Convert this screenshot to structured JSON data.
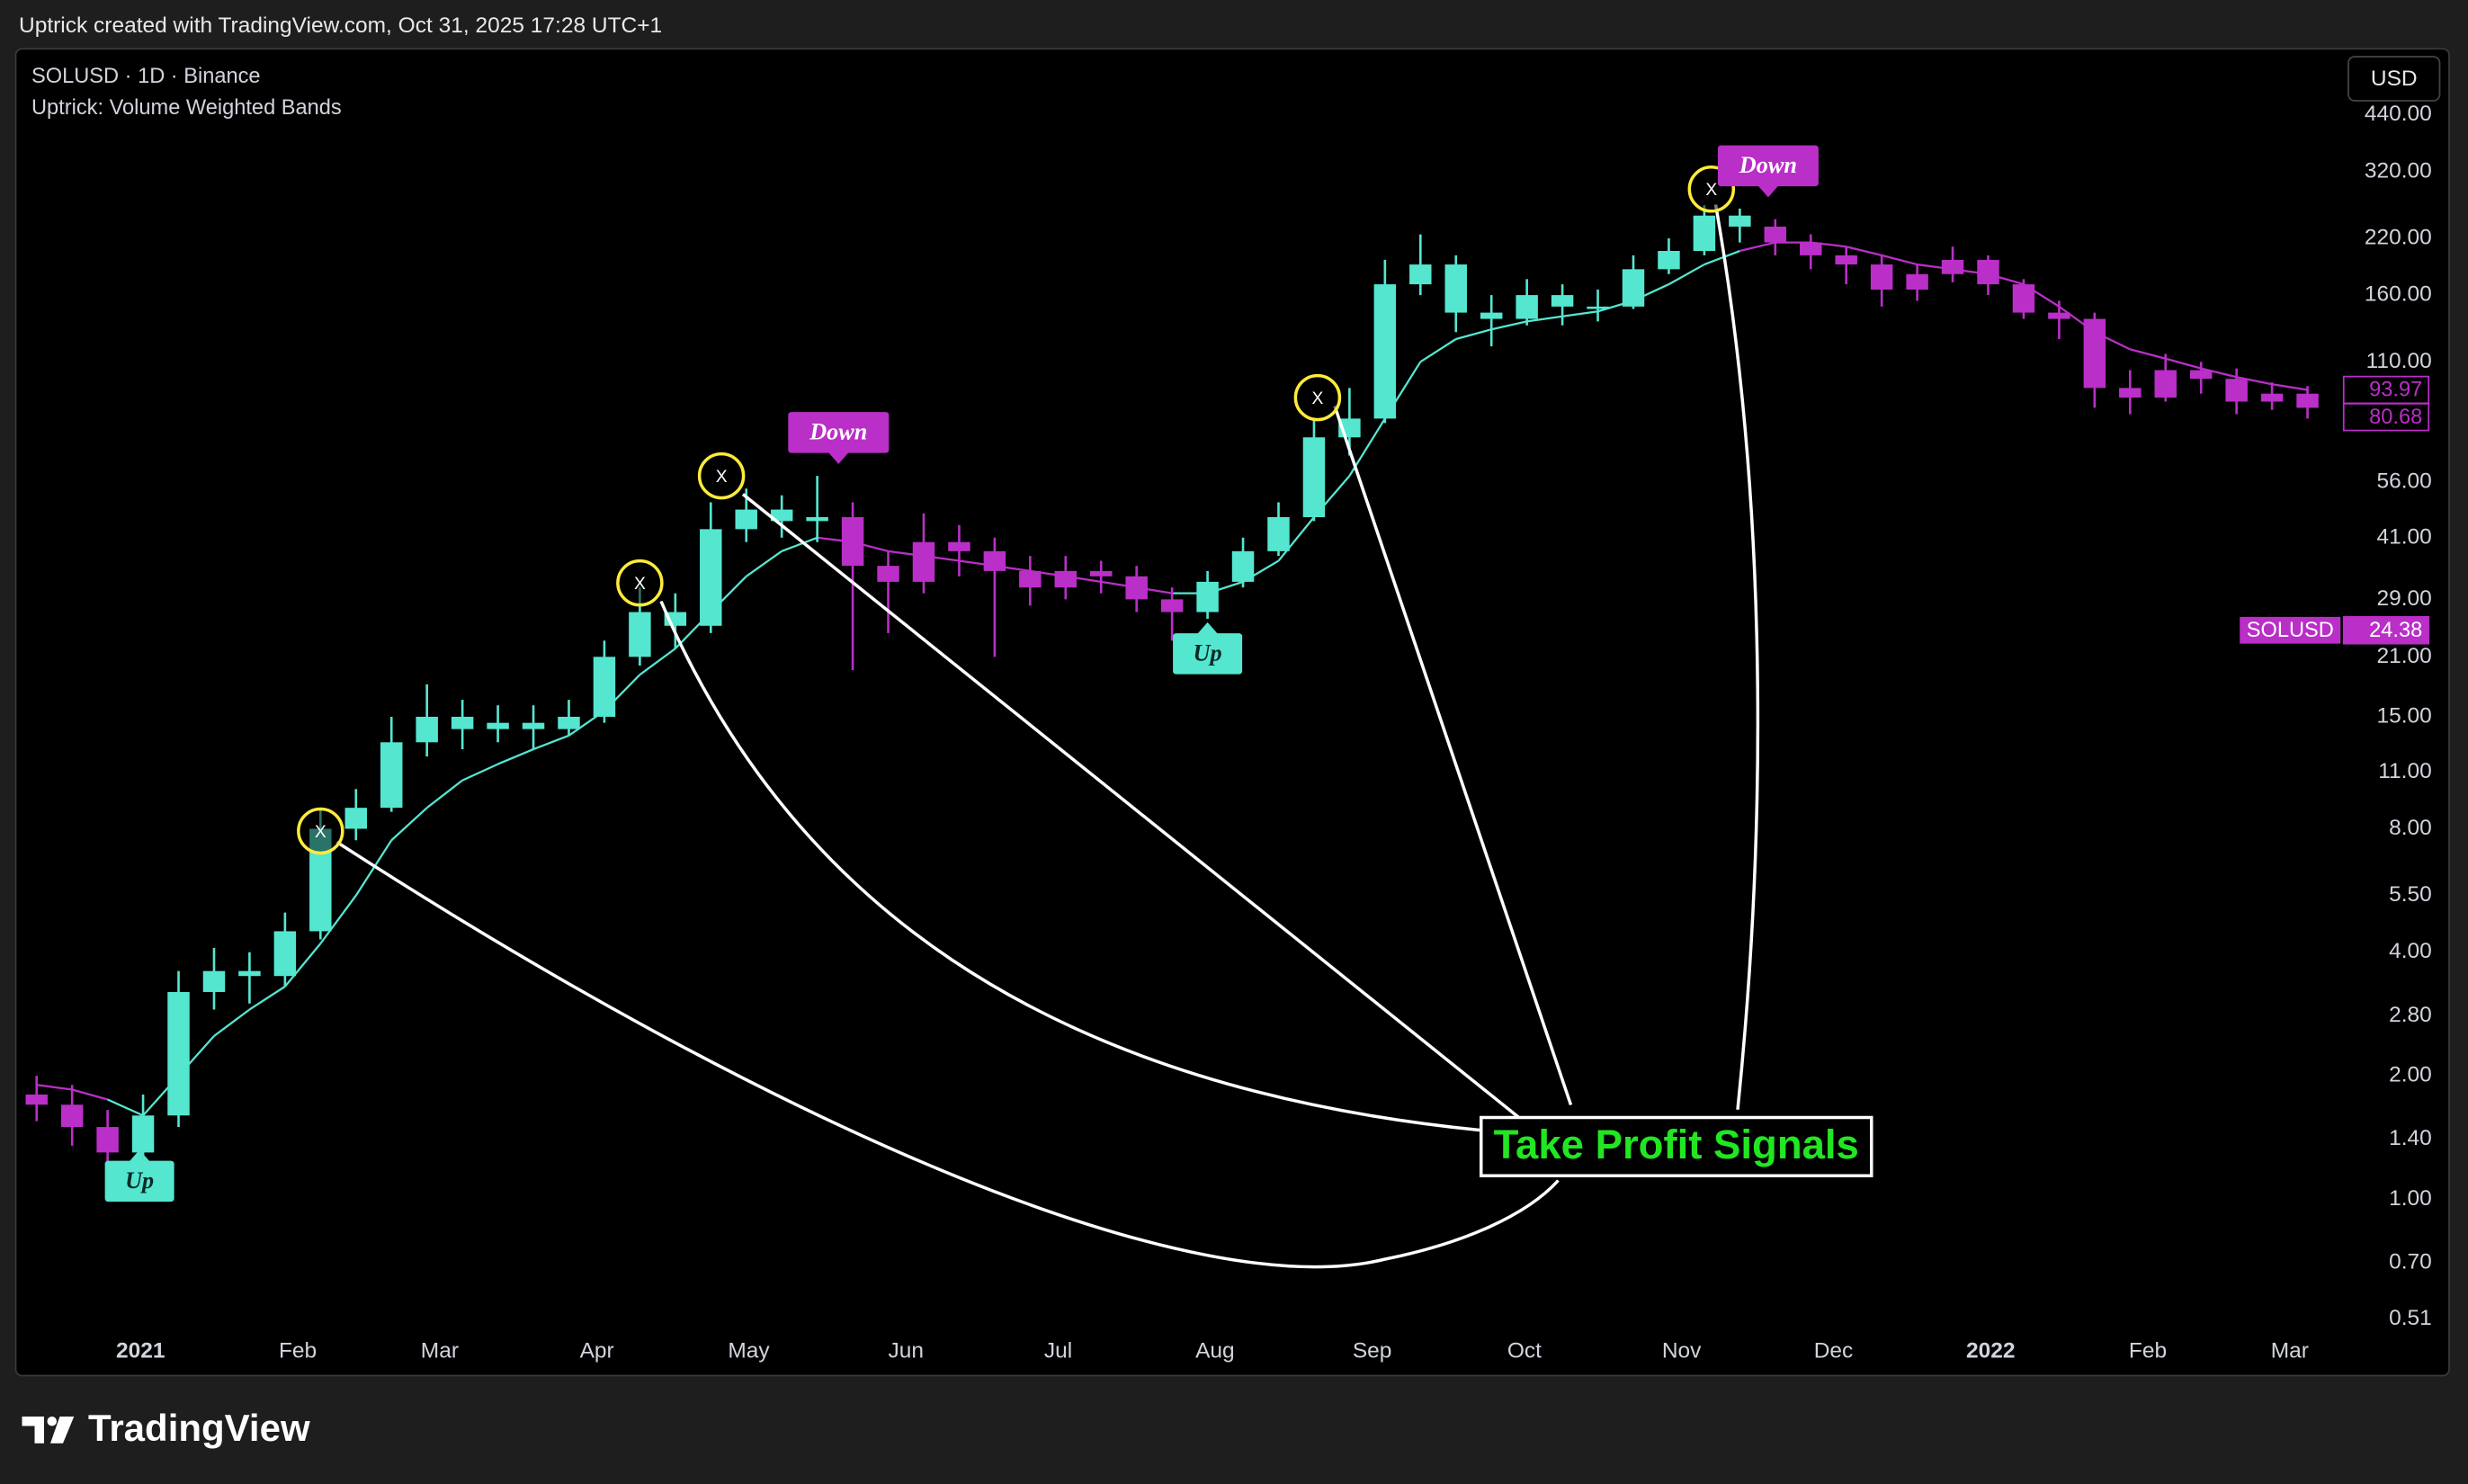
{
  "caption": "Uptrick created with TradingView.com, Oct 31, 2025 17:28 UTC+1",
  "brand": "TradingView",
  "chart_data": {
    "type": "candlestick",
    "title": "SOLUSD · 1D · Binance",
    "subtitle": "Uptrick: Volume Weighted Bands",
    "currency": "USD",
    "log_scale": true,
    "grid": false,
    "xlim": [
      -0.5,
      64.93
    ],
    "xticks": [
      {
        "value": 2.93,
        "label": "2021"
      },
      {
        "value": 7.36,
        "label": "Feb"
      },
      {
        "value": 11.36,
        "label": "Mar"
      },
      {
        "value": 15.79,
        "label": "Apr"
      },
      {
        "value": 20.07,
        "label": "May"
      },
      {
        "value": 24.5,
        "label": "Jun"
      },
      {
        "value": 28.79,
        "label": "Jul"
      },
      {
        "value": 33.21,
        "label": "Aug"
      },
      {
        "value": 37.64,
        "label": "Sep"
      },
      {
        "value": 41.93,
        "label": "Oct"
      },
      {
        "value": 46.36,
        "label": "Nov"
      },
      {
        "value": 50.64,
        "label": "Dec"
      },
      {
        "value": 55.07,
        "label": "2022"
      },
      {
        "value": 59.5,
        "label": "Feb"
      },
      {
        "value": 63.5,
        "label": "Mar"
      }
    ],
    "ylim": [
      0.48,
      632
    ],
    "yticks": [
      {
        "value": 440,
        "label": "440.00"
      },
      {
        "value": 320,
        "label": "320.00"
      },
      {
        "value": 220,
        "label": "220.00"
      },
      {
        "value": 160,
        "label": "160.00"
      },
      {
        "value": 110,
        "label": "110.00"
      },
      {
        "value": 56,
        "label": "56.00"
      },
      {
        "value": 41,
        "label": "41.00"
      },
      {
        "value": 29,
        "label": "29.00"
      },
      {
        "value": 21,
        "label": "21.00"
      },
      {
        "value": 15,
        "label": "15.00"
      },
      {
        "value": 11,
        "label": "11.00"
      },
      {
        "value": 8,
        "label": "8.00"
      },
      {
        "value": 5.5,
        "label": "5.50"
      },
      {
        "value": 4,
        "label": "4.00"
      },
      {
        "value": 2.8,
        "label": "2.80"
      },
      {
        "value": 2,
        "label": "2.00"
      },
      {
        "value": 1.4,
        "label": "1.40"
      },
      {
        "value": 1,
        "label": "1.00"
      },
      {
        "value": 0.7,
        "label": "0.70"
      },
      0.51
    ],
    "open": [
      1.8,
      1.7,
      1.5,
      1.3,
      1.6,
      3.2,
      3.6,
      3.5,
      4.5,
      8,
      9,
      13,
      15,
      14,
      14.5,
      14,
      15,
      21,
      27,
      25,
      43,
      48,
      45,
      46,
      35,
      32,
      40,
      38,
      34,
      31,
      34,
      33,
      29,
      27,
      32,
      38,
      46,
      72,
      80,
      170,
      190,
      145,
      140,
      160,
      150,
      150,
      185,
      205,
      250,
      235,
      215,
      200,
      190,
      165,
      180,
      195,
      170,
      145,
      140,
      95,
      90,
      105,
      100,
      88,
      92
    ],
    "high": [
      2.0,
      1.9,
      1.65,
      1.8,
      3.6,
      4.1,
      4.0,
      5.0,
      9,
      10,
      15,
      18,
      16.5,
      16,
      16,
      16.5,
      23,
      31,
      30,
      50,
      54,
      52,
      58,
      50,
      38,
      47,
      44,
      41,
      37,
      37,
      36,
      35,
      31,
      34,
      41,
      50,
      80,
      95,
      195,
      225,
      200,
      160,
      175,
      170,
      165,
      200,
      220,
      265,
      260,
      245,
      225,
      210,
      200,
      190,
      210,
      200,
      175,
      155,
      145,
      105,
      115,
      110,
      106,
      98,
      96
    ],
    "low": [
      1.55,
      1.35,
      1.05,
      1.2,
      1.5,
      2.9,
      3.0,
      3.3,
      4.3,
      7.5,
      8.8,
      12,
      12.5,
      13,
      12.5,
      13.5,
      14.5,
      20,
      22,
      24,
      40,
      41,
      40,
      19.5,
      24,
      30,
      33,
      21,
      28,
      29,
      30,
      27,
      23,
      26,
      31,
      37,
      45,
      65,
      78,
      160,
      130,
      120,
      135,
      135,
      138,
      148,
      180,
      200,
      215,
      200,
      185,
      170,
      150,
      155,
      172,
      160,
      140,
      125,
      85,
      82,
      88,
      92,
      82,
      84,
      80
    ],
    "close": [
      1.7,
      1.5,
      1.3,
      1.6,
      3.2,
      3.6,
      3.5,
      4.5,
      8,
      9,
      13,
      15,
      14,
      14.5,
      14,
      15,
      21,
      27,
      25,
      43,
      48,
      45,
      46,
      35,
      32,
      40,
      38,
      34,
      31,
      34,
      33,
      29,
      27,
      32,
      38,
      46,
      72,
      80,
      170,
      190,
      145,
      140,
      160,
      150,
      150,
      185,
      205,
      250,
      235,
      215,
      200,
      190,
      165,
      180,
      195,
      170,
      145,
      140,
      95,
      90,
      105,
      100,
      88,
      92,
      85
    ],
    "band": [
      1.9,
      1.85,
      1.75,
      1.6,
      2.0,
      2.5,
      2.9,
      3.3,
      4.2,
      5.5,
      7.5,
      9,
      10.5,
      11.5,
      12.5,
      13.5,
      15.5,
      19,
      22,
      27,
      33,
      38,
      41,
      40,
      38,
      37,
      36,
      35,
      34,
      33,
      32,
      31,
      30,
      30,
      32,
      36,
      46,
      58,
      80,
      110,
      125,
      132,
      138,
      142,
      146,
      155,
      170,
      190,
      205,
      215,
      215,
      210,
      200,
      190,
      185,
      180,
      170,
      150,
      130,
      118,
      112,
      106,
      101,
      97,
      94
    ],
    "colors": [
      "#b92fc7",
      "#b92fc7",
      "#b92fc7",
      "#55e6d0",
      "#55e6d0",
      "#55e6d0",
      "#55e6d0",
      "#55e6d0",
      "#55e6d0",
      "#55e6d0",
      "#55e6d0",
      "#55e6d0",
      "#55e6d0",
      "#55e6d0",
      "#55e6d0",
      "#55e6d0",
      "#55e6d0",
      "#55e6d0",
      "#55e6d0",
      "#55e6d0",
      "#55e6d0",
      "#55e6d0",
      "#55e6d0",
      "#b92fc7",
      "#b92fc7",
      "#b92fc7",
      "#b92fc7",
      "#b92fc7",
      "#b92fc7",
      "#b92fc7",
      "#b92fc7",
      "#b92fc7",
      "#b92fc7",
      "#55e6d0",
      "#55e6d0",
      "#55e6d0",
      "#55e6d0",
      "#55e6d0",
      "#55e6d0",
      "#55e6d0",
      "#55e6d0",
      "#55e6d0",
      "#55e6d0",
      "#55e6d0",
      "#55e6d0",
      "#55e6d0",
      "#55e6d0",
      "#55e6d0",
      "#55e6d0",
      "#b92fc7",
      "#b92fc7",
      "#b92fc7",
      "#b92fc7",
      "#b92fc7",
      "#b92fc7",
      "#b92fc7",
      "#b92fc7",
      "#b92fc7",
      "#b92fc7",
      "#b92fc7",
      "#b92fc7",
      "#b92fc7",
      "#b92fc7",
      "#b92fc7",
      "#b92fc7"
    ],
    "signal_color": "#ffeb3b",
    "signals": [
      {
        "x": 8,
        "value": 7.9,
        "label": "X"
      },
      {
        "x": 17,
        "value": 31.8,
        "label": "X"
      },
      {
        "x": 19.3,
        "value": 58,
        "label": "X"
      },
      {
        "x": 36.1,
        "value": 90,
        "label": "X"
      },
      {
        "x": 47.2,
        "value": 290,
        "label": "X"
      }
    ],
    "trend_labels": [
      {
        "x": 2.9,
        "value": 1.32,
        "label": "Up",
        "color": "#55e6d0",
        "position": "below"
      },
      {
        "x": 22.6,
        "value": 62,
        "label": "Down",
        "color": "#b92fc7",
        "position": "above"
      },
      {
        "x": 33.0,
        "value": 25.5,
        "label": "Up",
        "color": "#55e6d0",
        "position": "below"
      },
      {
        "x": 48.8,
        "value": 277,
        "label": "Down",
        "color": "#b92fc7",
        "position": "above"
      }
    ],
    "price_labels": [
      {
        "value": 93.97,
        "color": "#b92fc7"
      },
      {
        "value": 80.68,
        "color": "#b92fc7"
      },
      {
        "name": "SOLUSD",
        "value": 24.38,
        "color": "#b92fc7"
      }
    ],
    "annotation": "Take Profit Signals"
  }
}
